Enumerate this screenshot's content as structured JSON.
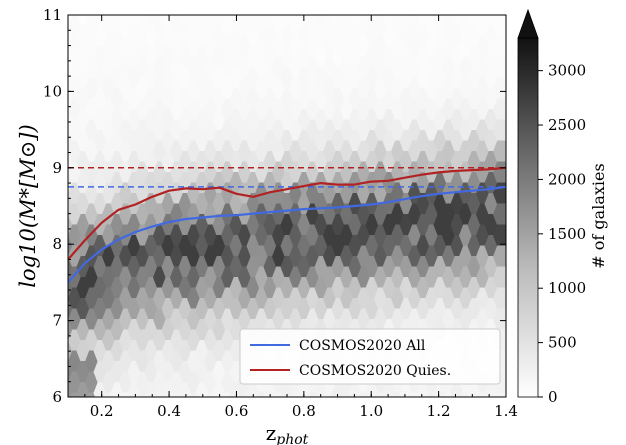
{
  "chart_data": {
    "type": "heatmap",
    "x_axis": {
      "label_main": "z",
      "label_sub": "phot",
      "range": [
        0.1,
        1.4
      ],
      "ticks": [
        0.2,
        0.4,
        0.6,
        0.8,
        1.0,
        1.2,
        1.4
      ],
      "tick_labels": [
        "0.2",
        "0.4",
        "0.6",
        "0.8",
        "1.0",
        "1.2",
        "1.4"
      ]
    },
    "y_axis": {
      "label": "log10(M*[M⊙])",
      "range": [
        6,
        11
      ],
      "ticks": [
        6,
        7,
        8,
        9,
        10,
        11
      ],
      "tick_labels": [
        "6",
        "7",
        "8",
        "9",
        "10",
        "11"
      ]
    },
    "colorbar": {
      "label": "# of galaxies",
      "range": [
        0,
        3300
      ],
      "ticks": [
        0,
        500,
        1000,
        1500,
        2000,
        2500,
        3000
      ],
      "tick_labels": [
        "0",
        "500",
        "1000",
        "1500",
        "2000",
        "2500",
        "3000"
      ],
      "extend": "max",
      "colormap": "Greys"
    },
    "series": [
      {
        "name": "COSMOS2020 All",
        "color": "#4169e1",
        "x": [
          0.1,
          0.15,
          0.2,
          0.25,
          0.3,
          0.35,
          0.4,
          0.45,
          0.5,
          0.55,
          0.6,
          0.65,
          0.7,
          0.75,
          0.8,
          0.85,
          0.9,
          0.95,
          1.0,
          1.05,
          1.1,
          1.15,
          1.2,
          1.25,
          1.3,
          1.35,
          1.4
        ],
        "y": [
          7.5,
          7.75,
          7.93,
          8.06,
          8.16,
          8.23,
          8.29,
          8.33,
          8.35,
          8.37,
          8.38,
          8.4,
          8.42,
          8.44,
          8.46,
          8.47,
          8.48,
          8.5,
          8.52,
          8.55,
          8.59,
          8.63,
          8.66,
          8.68,
          8.7,
          8.72,
          8.75
        ]
      },
      {
        "name": "COSMOS2020 Quies.",
        "color": "#b22222",
        "x": [
          0.1,
          0.15,
          0.2,
          0.25,
          0.3,
          0.35,
          0.4,
          0.45,
          0.5,
          0.55,
          0.6,
          0.65,
          0.7,
          0.75,
          0.8,
          0.85,
          0.9,
          0.95,
          1.0,
          1.05,
          1.1,
          1.15,
          1.2,
          1.25,
          1.3,
          1.35,
          1.4
        ],
        "y": [
          7.8,
          8.05,
          8.28,
          8.45,
          8.52,
          8.62,
          8.7,
          8.73,
          8.72,
          8.74,
          8.66,
          8.62,
          8.68,
          8.72,
          8.76,
          8.8,
          8.78,
          8.78,
          8.82,
          8.83,
          8.87,
          8.91,
          8.94,
          8.96,
          8.97,
          8.98,
          9.0
        ]
      }
    ],
    "hlines": [
      {
        "y": 9.0,
        "color": "#b22222",
        "style": "dashed"
      },
      {
        "y": 8.75,
        "color": "#4169e1",
        "style": "dashed"
      }
    ],
    "legend": {
      "placement": "lower-right",
      "entries": [
        "COSMOS2020 All",
        "COSMOS2020 Quies."
      ]
    }
  }
}
